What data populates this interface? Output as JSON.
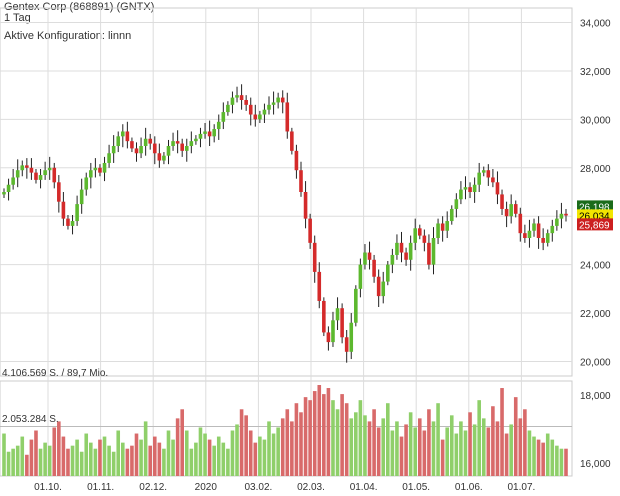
{
  "header": {
    "title": "Gentex Corp (868891) (GNTX)",
    "interval": "1 Tag",
    "config": "Aktive Konfiguration: linnn"
  },
  "volume_labels": {
    "max": "4.106.569 S. / 89,7 Mio.",
    "mid": "2.053.284 S."
  },
  "colors": {
    "up": "#5cb82e",
    "down": "#d42a2a",
    "wick": "#222222",
    "vol_up": "#8fcf6a",
    "vol_down": "#d86a6a",
    "grid": "#dddddd",
    "badge_high": "#1a6b1a",
    "badge_mid": "#f2e600",
    "badge_low": "#cc1f1f"
  },
  "chart_data": {
    "type": "candlestick",
    "y_ticks": [
      "20,000",
      "22,000",
      "24,000",
      "26,000",
      "28,000",
      "30,000",
      "32,000",
      "34,000"
    ],
    "ylim": [
      19.4,
      34.6
    ],
    "volume_ticks": [
      "16,000",
      "18,000"
    ],
    "x_ticks": [
      "01.10.",
      "01.11.",
      "02.12.",
      "2020",
      "03.02.",
      "02.03.",
      "01.04.",
      "01.05.",
      "01.06.",
      "01.07."
    ],
    "price_badges": [
      "26,198",
      "26,034",
      "25,869"
    ],
    "badge_values": [
      26.198,
      26.034,
      25.869
    ],
    "closes": [
      27.0,
      27.3,
      27.6,
      27.9,
      28.1,
      28.0,
      27.8,
      27.5,
      27.7,
      27.9,
      28.0,
      27.4,
      26.6,
      25.9,
      25.6,
      25.8,
      26.5,
      27.1,
      27.6,
      27.9,
      28.0,
      27.8,
      28.2,
      28.6,
      28.9,
      29.3,
      29.5,
      29.1,
      28.8,
      28.6,
      28.9,
      29.2,
      29.0,
      28.6,
      28.3,
      28.5,
      28.9,
      29.1,
      29.0,
      28.7,
      28.9,
      29.1,
      29.2,
      29.4,
      29.5,
      29.3,
      29.6,
      29.9,
      30.3,
      30.6,
      30.9,
      31.0,
      30.8,
      30.6,
      30.2,
      30.0,
      30.2,
      30.4,
      30.6,
      30.7,
      30.9,
      30.7,
      29.5,
      28.7,
      27.9,
      27.0,
      25.9,
      24.9,
      23.7,
      22.5,
      21.2,
      20.8,
      21.7,
      22.2,
      21.0,
      20.4,
      21.6,
      23.0,
      24.0,
      24.5,
      24.2,
      23.5,
      22.7,
      23.3,
      24.0,
      24.4,
      24.9,
      24.5,
      24.2,
      24.9,
      25.5,
      25.2,
      24.9,
      24.0,
      25.1,
      25.7,
      25.4,
      25.8,
      26.3,
      26.7,
      27.1,
      27.2,
      27.0,
      27.3,
      27.8,
      27.9,
      27.6,
      27.4,
      26.9,
      26.3,
      26.0,
      26.5,
      26.1,
      25.3,
      25.1,
      25.4,
      25.7,
      25.1,
      24.9,
      25.3,
      25.6,
      25.9,
      26.1,
      26.03
    ],
    "opens": [
      26.9,
      27.0,
      27.3,
      27.6,
      27.9,
      28.1,
      28.0,
      27.8,
      27.5,
      27.7,
      27.9,
      28.0,
      27.4,
      26.6,
      25.9,
      25.6,
      25.8,
      26.5,
      27.1,
      27.6,
      27.9,
      28.0,
      27.8,
      28.2,
      28.6,
      28.9,
      29.3,
      29.5,
      29.1,
      28.8,
      28.6,
      28.9,
      29.2,
      29.0,
      28.6,
      28.3,
      28.5,
      28.9,
      29.1,
      29.0,
      28.7,
      28.9,
      29.1,
      29.2,
      29.4,
      29.5,
      29.3,
      29.6,
      29.9,
      30.3,
      30.6,
      30.9,
      31.0,
      30.8,
      30.6,
      30.2,
      30.0,
      30.2,
      30.4,
      30.6,
      30.7,
      30.9,
      30.7,
      29.5,
      28.7,
      27.9,
      27.0,
      25.9,
      24.9,
      23.7,
      22.5,
      21.2,
      20.8,
      21.7,
      22.2,
      21.0,
      20.4,
      21.6,
      23.0,
      24.0,
      24.5,
      24.2,
      23.5,
      22.7,
      23.3,
      24.0,
      24.4,
      24.9,
      24.5,
      24.2,
      24.9,
      25.5,
      25.2,
      24.9,
      24.0,
      25.1,
      25.7,
      25.4,
      25.8,
      26.3,
      26.7,
      27.1,
      27.2,
      27.0,
      27.3,
      27.8,
      27.9,
      27.6,
      27.4,
      26.9,
      26.3,
      26.0,
      26.5,
      26.1,
      25.3,
      25.1,
      25.4,
      25.7,
      25.1,
      24.9,
      25.3,
      25.6,
      25.9,
      26.1
    ],
    "volumes": [
      14,
      8,
      9,
      10,
      13,
      7,
      12,
      15,
      9,
      11,
      10,
      16,
      18,
      13,
      9,
      10,
      12,
      8,
      14,
      11,
      9,
      12,
      13,
      10,
      8,
      15,
      11,
      9,
      10,
      14,
      12,
      18,
      10,
      13,
      11,
      9,
      15,
      12,
      19,
      22,
      15,
      9,
      11,
      16,
      14,
      12,
      10,
      13,
      11,
      9,
      15,
      17,
      22,
      20,
      15,
      11,
      13,
      12,
      18,
      14,
      16,
      19,
      22,
      18,
      24,
      21,
      26,
      25,
      28,
      30,
      27,
      29,
      25,
      22,
      27,
      24,
      19,
      21,
      25,
      20,
      18,
      22,
      16,
      19,
      24,
      15,
      18,
      13,
      17,
      21,
      16,
      19,
      15,
      22,
      18,
      24,
      12,
      16,
      20,
      14,
      18,
      15,
      21,
      17,
      25,
      19,
      16,
      23,
      18,
      29,
      14,
      17,
      26,
      19,
      22,
      15,
      13,
      12,
      11,
      14,
      12,
      10,
      9,
      9
    ]
  }
}
